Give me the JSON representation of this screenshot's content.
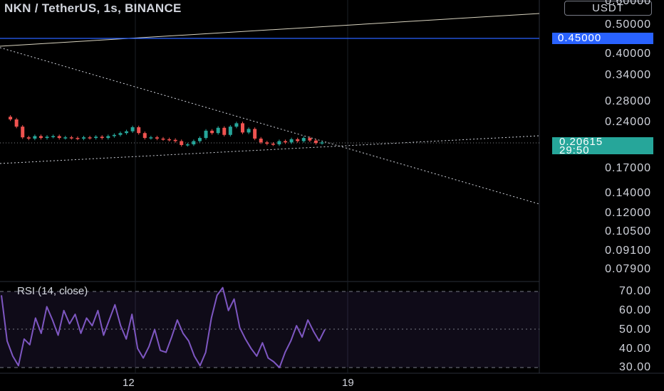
{
  "header": {
    "title": "NKN / TetherUS, 1s, BINANCE"
  },
  "price_axis": {
    "currency_label": "USDT",
    "labels": [
      "0.60000",
      "0.50000",
      "0.40000",
      "0.34000",
      "0.28000",
      "0.24000",
      "0.17000",
      "0.14000",
      "0.12000",
      "0.10500",
      "0.09100",
      "0.07900"
    ],
    "scale": "log"
  },
  "horizontal_line": {
    "price_label": "0.45000",
    "color": "#2962ff"
  },
  "current_price": {
    "value": "0.20615",
    "countdown": "29:50",
    "color": "#26a69a"
  },
  "rsi": {
    "label": "RSI (14, close)",
    "axis_labels": [
      "70.00",
      "60.00",
      "50.00",
      "40.00",
      "30.00"
    ],
    "line_color": "#7e57c2"
  },
  "time_axis": {
    "labels": [
      "12",
      "19"
    ]
  },
  "chart_data": [
    {
      "type": "line",
      "title": "NKN / TetherUS, 1s, BINANCE",
      "scale": "log",
      "ylim": [
        0.0775,
        0.6
      ],
      "series": [
        {
          "values": [
            0.25,
            0.245,
            0.232,
            0.214,
            0.212,
            0.216,
            0.213,
            0.215,
            0.216,
            0.213,
            0.214,
            0.213,
            0.212,
            0.214,
            0.213,
            0.215,
            0.213,
            0.216,
            0.218,
            0.221,
            0.224,
            0.231,
            0.221,
            0.213,
            0.214,
            0.212,
            0.211,
            0.21,
            0.208,
            0.202,
            0.203,
            0.208,
            0.213,
            0.225,
            0.221,
            0.23,
            0.218,
            0.232,
            0.238,
            0.222,
            0.228,
            0.212,
            0.206,
            0.204,
            0.203,
            0.208,
            0.206,
            0.211,
            0.208,
            0.213,
            0.209,
            0.205,
            0.206
          ]
        }
      ],
      "up_color": "#26a69a",
      "down_color": "#ef5350",
      "grid": false
    },
    {
      "type": "line",
      "title": "RSI (14, close)",
      "ylim": [
        27,
        73
      ],
      "series": [
        {
          "name": "RSI (14, close)",
          "values": [
            68,
            44,
            36,
            31,
            45,
            42,
            56,
            48,
            62,
            55,
            47,
            60,
            53,
            58,
            48,
            56,
            52,
            60,
            47,
            55,
            63,
            52,
            45,
            58,
            40,
            35,
            41,
            50,
            39,
            38,
            46,
            55,
            48,
            44,
            36,
            31,
            38,
            56,
            68,
            72,
            60,
            66,
            51,
            45,
            40,
            36,
            43,
            35,
            33,
            30,
            38,
            44,
            52,
            46,
            55,
            49,
            44,
            50
          ]
        }
      ],
      "band": [
        30,
        70
      ],
      "midline": 50,
      "grid": false
    }
  ]
}
